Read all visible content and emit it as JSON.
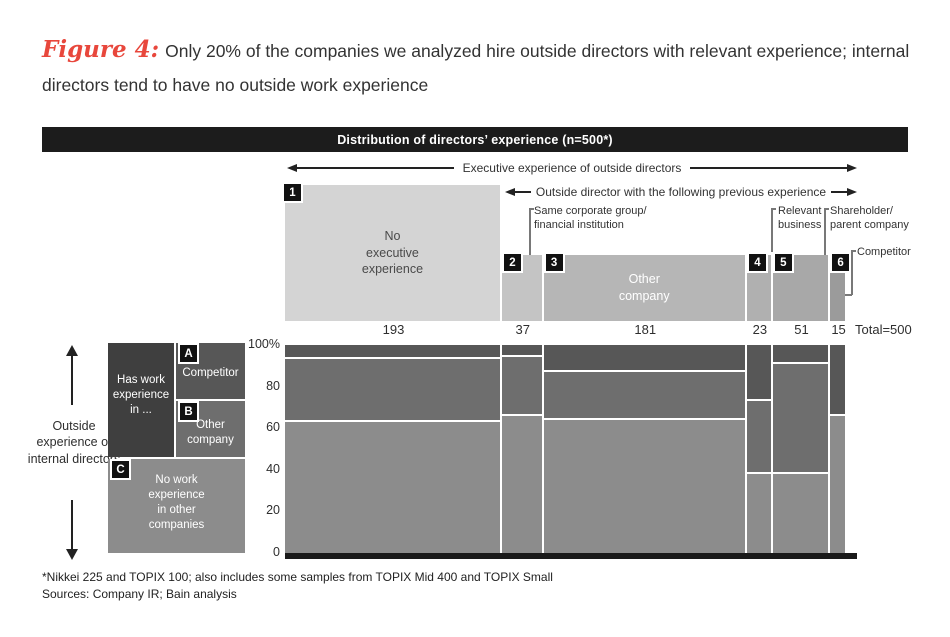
{
  "figure": {
    "label": "Figure 4:",
    "title": "Only 20% of the companies we analyzed hire outside directors with relevant experience; internal directors tend to have no outside work experience"
  },
  "header_bar": "Distribution of directors’ experience (n=500*)",
  "axes": {
    "arrow_outer": "Executive experience of outside directors",
    "arrow_inner": "Outside director with the following previous experience",
    "ylabel": "Outside experience of internal directors",
    "yticks": [
      "100%",
      "80",
      "60",
      "40",
      "20",
      "0"
    ],
    "total_label": "Total=500"
  },
  "callouts": {
    "same_group": "Same corporate group/\nfinancial institution",
    "relevant": "Relevant\nbusiness",
    "shareholder": "Shareholder/\nparent company",
    "competitor": "Competitor"
  },
  "chart_data": {
    "type": "marimekko",
    "title": "Distribution of directors’ experience (n=500*)",
    "x_total": 500,
    "x_axis_label": "Executive experience of outside directors",
    "y_axis_label": "Outside experience of internal directors",
    "ylim": [
      0,
      100
    ],
    "yticks": [
      100,
      80,
      60,
      40,
      20,
      0
    ],
    "columns": [
      {
        "badge": "1",
        "label": "No executive experience",
        "count": 193,
        "bar_label": "No\nexecutive\nexperience",
        "bar_label_tone": "dark",
        "segments": {
          "A": 6,
          "B": 30,
          "C": 64
        }
      },
      {
        "badge": "2",
        "label": "Same corporate group/financial institution",
        "count": 37,
        "bar_label": "",
        "bar_label_tone": "dark",
        "segments": {
          "A": 5,
          "B": 28,
          "C": 67
        }
      },
      {
        "badge": "3",
        "label": "Other company",
        "count": 181,
        "bar_label": "Other\ncompany",
        "bar_label_tone": "light",
        "segments": {
          "A": 12,
          "B": 23,
          "C": 65
        }
      },
      {
        "badge": "4",
        "label": "Relevant business",
        "count": 23,
        "bar_label": "",
        "bar_label_tone": "dark",
        "segments": {
          "A": 26,
          "B": 35,
          "C": 39
        }
      },
      {
        "badge": "5",
        "label": "Shareholder/parent company",
        "count": 51,
        "bar_label": "",
        "bar_label_tone": "dark",
        "segments": {
          "A": 8,
          "B": 53,
          "C": 39
        }
      },
      {
        "badge": "6",
        "label": "Competitor",
        "count": 15,
        "bar_label": "",
        "bar_label_tone": "dark",
        "segments": {
          "A": 33,
          "B": 0,
          "C": 67
        }
      }
    ],
    "rows": [
      {
        "badge": "A",
        "label": "Competitor",
        "color": "#575757"
      },
      {
        "badge": "B",
        "label": "Other company",
        "color": "#6e6e6e"
      },
      {
        "badge": "C",
        "label": "No work experience in other companies",
        "color": "#8c8c8c"
      }
    ],
    "column_bar_colors": [
      "#d4d4d4",
      "#c4c4c4",
      "#b6b6b6",
      "#b0b0b0",
      "#a8a8a8",
      "#9b9b9b"
    ]
  },
  "legend": {
    "has_work": "Has work\nexperience\nin ...",
    "items": [
      {
        "badge": "A",
        "label": "Competitor"
      },
      {
        "badge": "B",
        "label": "Other\ncompany"
      },
      {
        "badge": "C",
        "label": "No work\nexperience\nin other\ncompanies"
      }
    ]
  },
  "footnotes": [
    "*Nikkei 225 and TOPIX 100; also includes some samples from TOPIX Mid 400 and TOPIX Small",
    "Sources: Company IR; Bain analysis"
  ],
  "colors": {
    "accent_red": "#e8473c",
    "header_black": "#1c1c1c",
    "text_dark": "#333333"
  }
}
